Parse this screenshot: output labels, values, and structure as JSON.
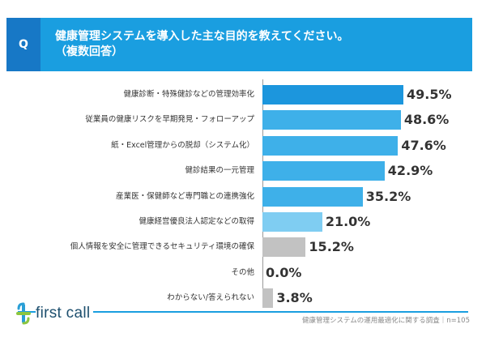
{
  "question": {
    "badge": "Q",
    "line1": "健康管理システムを導入した主な目的を教えてください。",
    "line2": "（複数回答）"
  },
  "colors": {
    "dark": "#1c96dd",
    "mid": "#3eb0e9",
    "light": "#7fcdf2",
    "gray": "#c2c2c2"
  },
  "chart_data": {
    "type": "bar",
    "orientation": "horizontal",
    "categories": [
      "健康診断・特殊健診などの管理効率化",
      "従業員の健康リスクを早期発見・フォローアップ",
      "紙・Excel管理からの脱却（システム化）",
      "健診結果の一元管理",
      "産業医・保健師など専門職との連携強化",
      "健康経営優良法人認定などの取得",
      "個人情報を安全に管理できるセキュリティ環境の確保",
      "その他",
      "わからない/答えられない"
    ],
    "values": [
      49.5,
      48.6,
      47.6,
      42.9,
      35.2,
      21.0,
      15.2,
      0.0,
      3.8
    ],
    "value_labels": [
      "49.5%",
      "48.6%",
      "47.6%",
      "42.9%",
      "35.2%",
      "21.0%",
      "15.2%",
      "0.0%",
      "3.8%"
    ],
    "bar_colors": [
      "dark",
      "mid",
      "mid",
      "mid",
      "mid",
      "light",
      "gray",
      "gray",
      "gray"
    ],
    "unit": "%"
  },
  "footer": {
    "brand": "first call",
    "source": "健康管理システムの運用最適化に関する調査｜n=105"
  }
}
